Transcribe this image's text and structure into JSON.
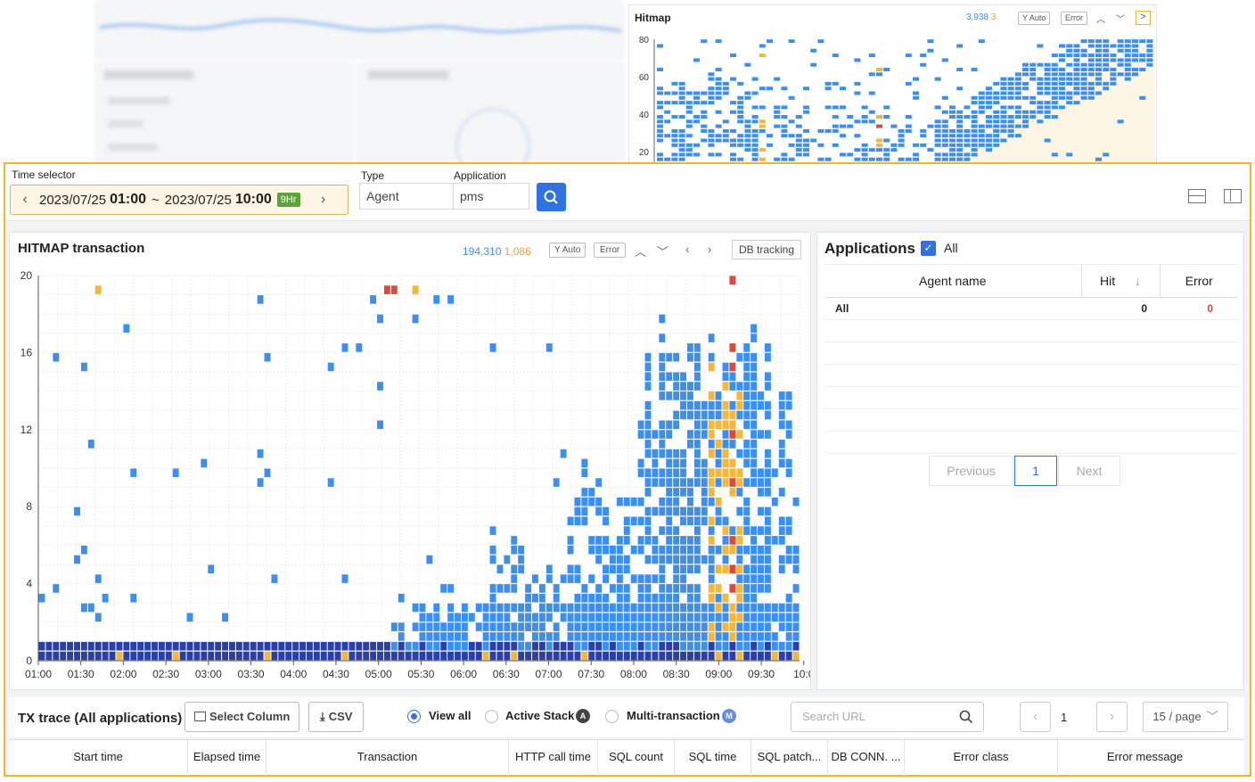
{
  "background": {
    "mini_hitmap": {
      "title": "Hitmap",
      "count_blue": "3,938",
      "count_orange": "3",
      "y_auto_label": "Y Auto",
      "error_label": "Error",
      "y_ticks": [
        "80",
        "60",
        "40",
        "20"
      ]
    }
  },
  "toolbar": {
    "time_selector_label": "Time selector",
    "time_start_date": "2023/07/25",
    "time_start_time": "01:00",
    "time_sep": "~",
    "time_end_date": "2023/07/25",
    "time_end_time": "10:00",
    "duration_badge": "9Hr",
    "type_label": "Type",
    "type_value": "Agent",
    "application_label": "Application",
    "application_value": "pms"
  },
  "hitmap": {
    "title": "HITMAP transaction",
    "count_blue": "194,310",
    "count_orange": "1,086",
    "y_auto_label": "Y Auto",
    "error_label": "Error",
    "db_tracking_label": "DB tracking",
    "chart_data": {
      "type": "heatmap",
      "x_ticks": [
        "01:00",
        "01:30",
        "02:00",
        "02:30",
        "03:00",
        "03:30",
        "04:00",
        "04:30",
        "05:00",
        "05:30",
        "06:00",
        "06:30",
        "07:00",
        "07:30",
        "08:00",
        "08:30",
        "09:00",
        "09:30",
        "10:0"
      ],
      "y_ticks": [
        "20",
        "16",
        "12",
        "8",
        "4",
        "0"
      ],
      "ylim": [
        0,
        20
      ],
      "colors": {
        "low": "#3b8ff0",
        "dense": "#2a3fa8",
        "warn": "#f4b73a",
        "error": "#dc4a3d"
      }
    }
  },
  "applications": {
    "title": "Applications",
    "all_label": "All",
    "columns": [
      "Agent name",
      "Hit",
      "Error"
    ],
    "rows": [
      {
        "name": "All",
        "hit": "0",
        "error": "0"
      }
    ],
    "previous_label": "Previous",
    "page": "1",
    "next_label": "Next"
  },
  "tx_trace": {
    "title": "TX trace (All applications)",
    "select_column_label": "Select Column",
    "csv_label": "CSV",
    "view_all_label": "View all",
    "active_stack_label": "Active Stack",
    "active_stack_badge": "A",
    "multi_tx_label": "Multi-transaction",
    "multi_tx_badge": "M",
    "search_placeholder": "Search URL",
    "page": "1",
    "page_size": "15 / page",
    "columns": [
      "Start time",
      "Elapsed time",
      "Transaction",
      "HTTP call time",
      "SQL count",
      "SQL time",
      "SQL patch...",
      "DB CONN. ...",
      "Error class",
      "Error message"
    ]
  }
}
